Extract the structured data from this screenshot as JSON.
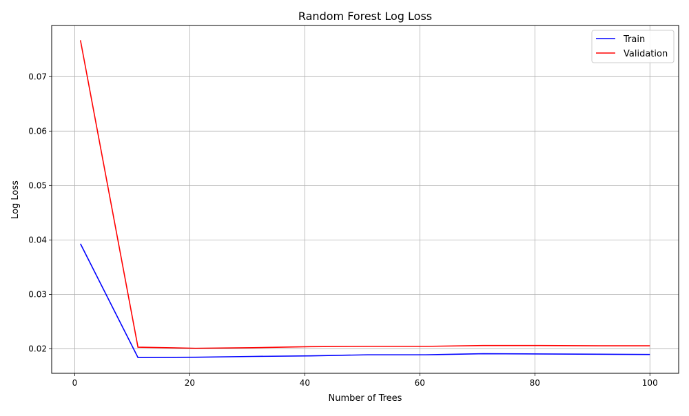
{
  "chart_data": {
    "type": "line",
    "title": "Random Forest Log Loss",
    "xlabel": "Number of Trees",
    "ylabel": "Log Loss",
    "xlim": [
      -4,
      105
    ],
    "ylim": [
      0.0155,
      0.0794
    ],
    "grid": true,
    "legend_position": "top-right",
    "x_ticks": [
      0,
      20,
      40,
      60,
      80,
      100
    ],
    "x_tick_labels": [
      "0",
      "20",
      "40",
      "60",
      "80",
      "100"
    ],
    "y_ticks": [
      0.02,
      0.03,
      0.04,
      0.05,
      0.06,
      0.07
    ],
    "y_tick_labels": [
      "0.02",
      "0.03",
      "0.04",
      "0.05",
      "0.06",
      "0.07"
    ],
    "x": [
      1,
      11,
      21,
      31,
      41,
      51,
      61,
      71,
      81,
      91,
      100
    ],
    "series": [
      {
        "name": "Train",
        "color": "#0000ff",
        "values": [
          0.0393,
          0.0184,
          0.01845,
          0.0186,
          0.0187,
          0.0189,
          0.0189,
          0.0191,
          0.01905,
          0.019,
          0.01895
        ]
      },
      {
        "name": "Validation",
        "color": "#ff0000",
        "values": [
          0.0767,
          0.0203,
          0.0201,
          0.0202,
          0.0204,
          0.02045,
          0.02045,
          0.0206,
          0.0206,
          0.02055,
          0.02055
        ]
      }
    ]
  }
}
